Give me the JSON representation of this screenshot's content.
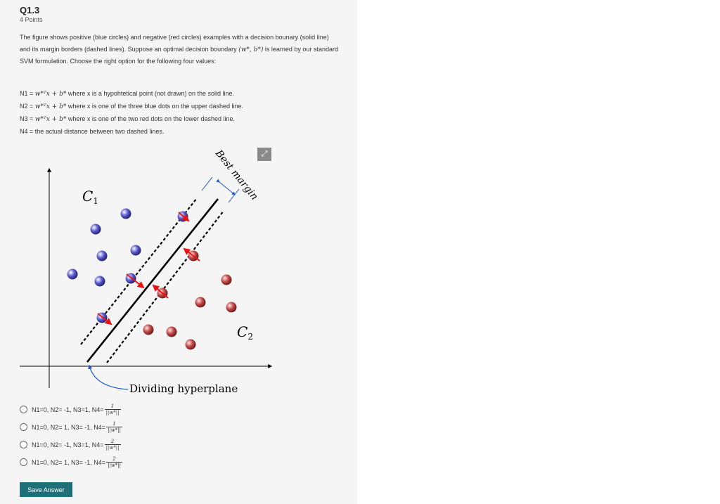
{
  "question": {
    "title": "Q1.3",
    "points": "4 Points",
    "prompt_pre": "The figure shows positive (blue circles) and negative (red circles) examples with a decision bounary (solid line) and its margin borders (dashed lines). Suppose an optimal decision boundary ",
    "prompt_math": "(w*, b*)",
    "prompt_post": " is learned by our standard SVM formulation. Choose the right option for the following four values:"
  },
  "definitions": [
    {
      "label": "N1 = ",
      "expr": "w*ᵀx + b*",
      "text": " where x is a hypohtetical point (not drawn) on the solid line."
    },
    {
      "label": "N2 = ",
      "expr": "w*ᵀx + b*",
      "text": " where x is one of the three blue dots on the upper dashed line."
    },
    {
      "label": "N3 = ",
      "expr": "w*ᵀx + b*",
      "text": " where x is one of the two red dots on the lower dashed line."
    },
    {
      "label": "N4 = ",
      "expr": "",
      "text": "the actual distance between two dashed lines."
    }
  ],
  "figure": {
    "label_c1": "C",
    "label_c1_sub": "1",
    "label_c2": "C",
    "label_c2_sub": "2",
    "best_margin": "Best margin",
    "hyperplane": "Dividing hyperplane",
    "expand_icon": "expand-icon",
    "colors": {
      "positive": "#2b2b9a",
      "negative": "#a52a2a",
      "arrow": "#ee1111",
      "annotation": "#1a55d6"
    }
  },
  "options": [
    {
      "text": "N1=0, N2= -1, N3=1, N4=",
      "num": "1",
      "den": "||w*||"
    },
    {
      "text": "N1=0, N2= 1, N3= -1, N4=",
      "num": "1",
      "den": "||w*||"
    },
    {
      "text": "N1=0, N2= -1, N3=1, N4=",
      "num": "2",
      "den": "||w*||"
    },
    {
      "text": "N1=0, N2= 1, N3= -1, N4=",
      "num": "2",
      "den": "||w*||"
    }
  ],
  "save_label": "Save Answer"
}
